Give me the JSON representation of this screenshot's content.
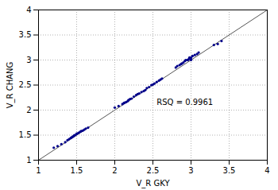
{
  "chart_data": {
    "type": "scatter",
    "xlabel": "V_R GKY",
    "ylabel": "V_R CHANG",
    "xlim": [
      1,
      4
    ],
    "ylim": [
      1,
      4
    ],
    "xticks": [
      1,
      1.5,
      2,
      2.5,
      3,
      3.5,
      4
    ],
    "yticks": [
      1,
      1.5,
      2,
      2.5,
      3,
      3.5,
      4
    ],
    "grid": true,
    "annotations": [
      {
        "text": "RSQ = 0.9961",
        "x": 2.55,
        "y": 2.1
      }
    ],
    "series": [
      {
        "type": "scatter",
        "color": "#00008B",
        "marker": "dot",
        "x": [
          1.2,
          1.25,
          1.3,
          1.35,
          1.38,
          1.4,
          1.42,
          1.43,
          1.44,
          1.45,
          1.46,
          1.47,
          1.48,
          1.5,
          1.5,
          1.52,
          1.53,
          1.55,
          1.56,
          1.58,
          1.6,
          1.62,
          1.65,
          2.0,
          2.05,
          2.1,
          2.12,
          2.13,
          2.15,
          2.17,
          2.18,
          2.2,
          2.22,
          2.25,
          2.28,
          2.3,
          2.32,
          2.35,
          2.38,
          2.4,
          2.42,
          2.45,
          2.48,
          2.5,
          2.52,
          2.55,
          2.58,
          2.6,
          2.62,
          2.8,
          2.82,
          2.85,
          2.87,
          2.88,
          2.9,
          2.92,
          2.93,
          2.95,
          2.96,
          2.97,
          2.98,
          3.0,
          3.0,
          3.0,
          3.02,
          3.05,
          3.08,
          3.1,
          3.3,
          3.35,
          3.4
        ],
        "values": [
          1.25,
          1.28,
          1.32,
          1.36,
          1.4,
          1.42,
          1.44,
          1.45,
          1.46,
          1.47,
          1.48,
          1.5,
          1.5,
          1.52,
          1.53,
          1.54,
          1.55,
          1.57,
          1.58,
          1.59,
          1.61,
          1.63,
          1.65,
          2.05,
          2.08,
          2.12,
          2.14,
          2.15,
          2.16,
          2.18,
          2.2,
          2.22,
          2.23,
          2.27,
          2.3,
          2.32,
          2.33,
          2.36,
          2.38,
          2.4,
          2.44,
          2.46,
          2.5,
          2.51,
          2.53,
          2.56,
          2.59,
          2.61,
          2.63,
          2.85,
          2.88,
          2.9,
          2.92,
          2.93,
          2.95,
          2.98,
          3.0,
          3.0,
          3.0,
          3.02,
          3.05,
          3.0,
          3.02,
          3.05,
          3.08,
          3.1,
          3.12,
          3.15,
          3.3,
          3.32,
          3.38
        ]
      },
      {
        "type": "line",
        "color": "#555555",
        "line_style": "solid",
        "x": [
          1,
          4
        ],
        "values": [
          1,
          4
        ]
      }
    ]
  }
}
